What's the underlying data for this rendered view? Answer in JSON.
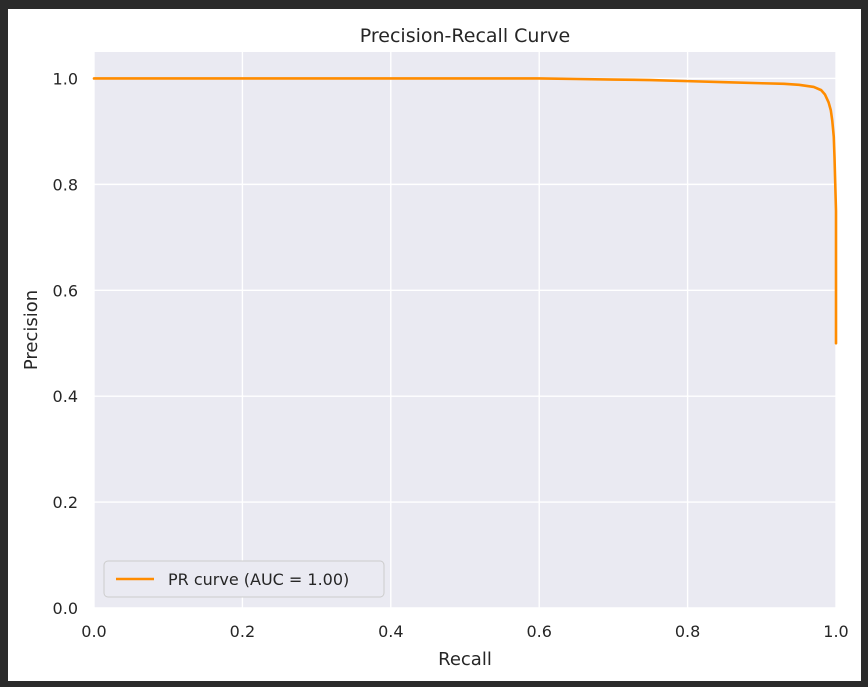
{
  "chart_data": {
    "type": "line",
    "title": "Precision-Recall Curve",
    "xlabel": "Recall",
    "ylabel": "Precision",
    "xlim": [
      0.0,
      1.0
    ],
    "ylim": [
      0.0,
      1.05
    ],
    "grid": true,
    "legend_position": "lower-left",
    "x_ticks": [
      "0.0",
      "0.2",
      "0.4",
      "0.6",
      "0.8",
      "1.0"
    ],
    "y_ticks": [
      "0.0",
      "0.2",
      "0.4",
      "0.6",
      "0.8",
      "1.0"
    ],
    "series": [
      {
        "name": "PR curve (AUC = 1.00)",
        "color": "#ff8c00",
        "x": [
          0.0,
          0.1,
          0.2,
          0.3,
          0.4,
          0.5,
          0.6,
          0.65,
          0.7,
          0.75,
          0.8,
          0.85,
          0.9,
          0.93,
          0.95,
          0.97,
          0.98,
          0.985,
          0.99,
          0.993,
          0.995,
          0.997,
          0.998,
          0.999,
          1.0,
          1.0,
          1.0
        ],
        "y": [
          1.0,
          1.0,
          1.0,
          1.0,
          1.0,
          1.0,
          1.0,
          0.999,
          0.998,
          0.997,
          0.995,
          0.993,
          0.991,
          0.99,
          0.988,
          0.984,
          0.978,
          0.97,
          0.955,
          0.94,
          0.92,
          0.89,
          0.85,
          0.8,
          0.75,
          0.6,
          0.5
        ]
      }
    ]
  },
  "colors": {
    "plot_background": "#eaeaf2",
    "grid": "#ffffff",
    "series": "#ff8c00"
  }
}
